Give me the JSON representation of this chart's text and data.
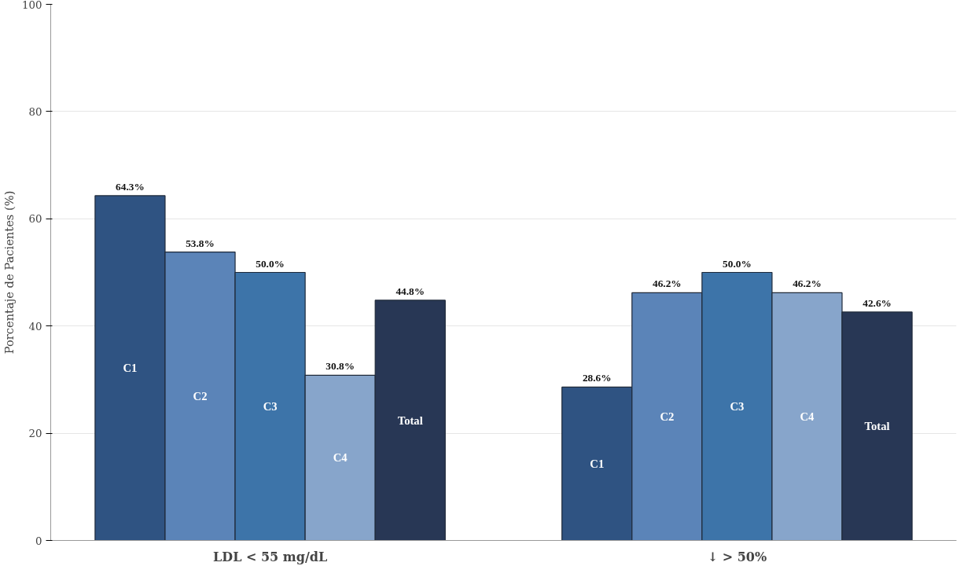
{
  "chart_data": {
    "type": "bar",
    "ylabel": "Porcentaje de Pacientes (%)",
    "categories": [
      "LDL < 55 mg/dL",
      "↓ > 50%"
    ],
    "series": [
      {
        "name": "C1",
        "color": "#2f5382",
        "values": [
          64.3,
          28.6
        ],
        "value_labels": [
          "64.3%",
          "28.6%"
        ]
      },
      {
        "name": "C2",
        "color": "#5b84b8",
        "values": [
          53.8,
          46.2
        ],
        "value_labels": [
          "53.8%",
          "46.2%"
        ]
      },
      {
        "name": "C3",
        "color": "#3d74a9",
        "values": [
          50.0,
          50.0
        ],
        "value_labels": [
          "50.0%",
          "50.0%"
        ]
      },
      {
        "name": "C4",
        "color": "#87a5cb",
        "values": [
          30.8,
          46.2
        ],
        "value_labels": [
          "30.8%",
          "46.2%"
        ]
      },
      {
        "name": "Total",
        "color": "#283755",
        "values": [
          44.8,
          42.6
        ],
        "value_labels": [
          "44.8%",
          "42.6%"
        ]
      }
    ],
    "ylim": [
      0,
      100
    ],
    "yticks": [
      0,
      20,
      40,
      60,
      80,
      100
    ],
    "grid": "y"
  }
}
